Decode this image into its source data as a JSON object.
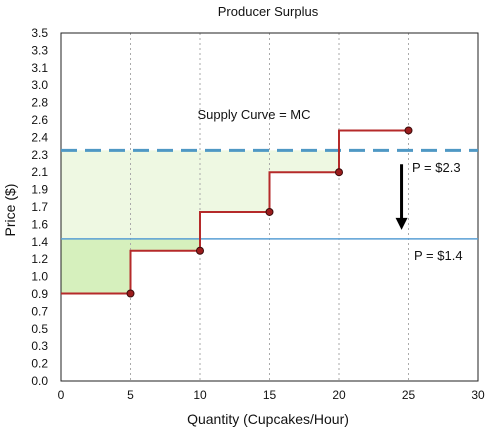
{
  "chart_data": {
    "type": "line",
    "title": "Producer Surplus",
    "xlabel": "Quantity (Cupcakes/Hour)",
    "ylabel": "Price ($)",
    "xlim": [
      0,
      30
    ],
    "ylim": [
      0,
      3.5
    ],
    "x_ticks": [
      0,
      5,
      10,
      15,
      20,
      25,
      30
    ],
    "y_ticks": [
      "0.0",
      "0.2",
      "0.3",
      "0.5",
      "0.7",
      "0.9",
      "1.0",
      "1.2",
      "1.4",
      "1.6",
      "1.7",
      "1.9",
      "2.1",
      "2.3",
      "2.4",
      "2.6",
      "2.8",
      "3.0",
      "3.1",
      "3.3",
      "3.5"
    ],
    "grid": {
      "vertical": true,
      "horizontal": false
    },
    "supply_curve": {
      "name": "Supply Curve = MC",
      "type": "step",
      "points": [
        {
          "x": 5,
          "y": 0.88
        },
        {
          "x": 10,
          "y": 1.31
        },
        {
          "x": 15,
          "y": 1.7
        },
        {
          "x": 20,
          "y": 2.1
        },
        {
          "x": 25,
          "y": 2.52
        }
      ],
      "start_x": 0
    },
    "price_lines": [
      {
        "label": "P = $2.3",
        "value": 2.32,
        "style": "dashed"
      },
      {
        "label": "P = $1.4",
        "value": 1.43,
        "style": "solid"
      }
    ],
    "arrow": {
      "x": 24.5,
      "from": 2.18,
      "to": 1.52
    },
    "colors": {
      "supply": "#b52a2a",
      "marker_fill": "#9b1c1c",
      "price_high": "#4f98c4",
      "price_low": "#5a9fd4",
      "surplus_high": "#eef8e2",
      "surplus_low": "#d6f0bd",
      "grid": "#aaaaaa",
      "arrow": "#000000"
    }
  }
}
